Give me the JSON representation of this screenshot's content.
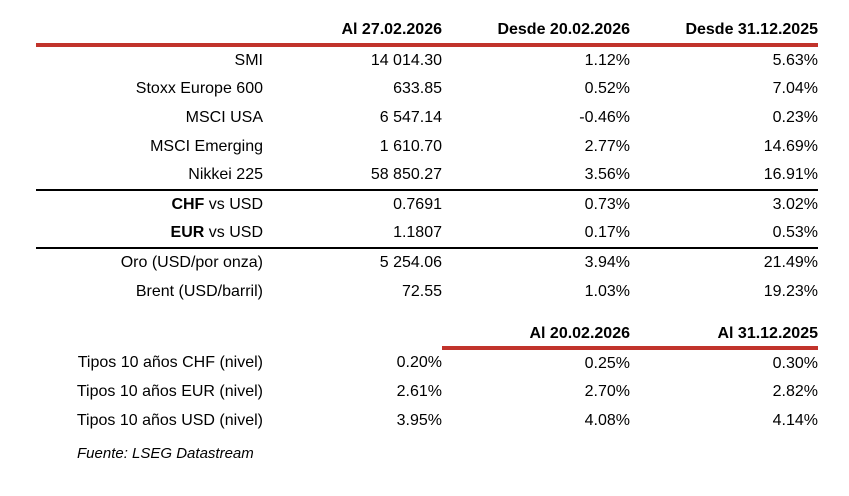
{
  "colors": {
    "accent_red": "#C1332B",
    "divider_black": "#000000",
    "text": "#000000",
    "background": "#FFFFFF"
  },
  "table": {
    "header": {
      "col2": "Al 27.02.2026",
      "col3": "Desde 20.02.2026",
      "col4": "Desde 31.12.2025"
    },
    "rows": [
      {
        "label_bold": "",
        "label": "SMI",
        "values": [
          "14 014.30",
          "1.12%",
          "5.63%"
        ]
      },
      {
        "label_bold": "",
        "label": "Stoxx Europe 600",
        "values": [
          "633.85",
          "0.52%",
          "7.04%"
        ]
      },
      {
        "label_bold": "",
        "label": "MSCI USA",
        "values": [
          "6 547.14",
          "-0.46%",
          "0.23%"
        ]
      },
      {
        "label_bold": "",
        "label": "MSCI Emerging",
        "values": [
          "1 610.70",
          "2.77%",
          "14.69%"
        ]
      },
      {
        "label_bold": "",
        "label": "Nikkei 225",
        "values": [
          "58 850.27",
          "3.56%",
          "16.91%"
        ]
      },
      {
        "label_bold": "CHF",
        "label": " vs USD",
        "values": [
          "0.7691",
          "0.73%",
          "3.02%"
        ]
      },
      {
        "label_bold": "EUR",
        "label": " vs USD",
        "values": [
          "1.1807",
          "0.17%",
          "0.53%"
        ]
      },
      {
        "label_bold": "",
        "label": "Oro (USD/por onza)",
        "values": [
          "5 254.06",
          "3.94%",
          "21.49%"
        ]
      },
      {
        "label_bold": "",
        "label": "Brent (USD/barril)",
        "values": [
          "72.55",
          "1.03%",
          "19.23%"
        ]
      }
    ],
    "rates_header": {
      "col3": "Al 20.02.2026",
      "col4": "Al 31.12.2025"
    },
    "rates_rows": [
      {
        "label": "Tipos 10 años CHF (nivel)",
        "values": [
          "0.20%",
          "0.25%",
          "0.30%"
        ]
      },
      {
        "label": "Tipos 10 años EUR (nivel)",
        "values": [
          "2.61%",
          "2.70%",
          "2.82%"
        ]
      },
      {
        "label": "Tipos 10 años USD (nivel)",
        "values": [
          "3.95%",
          "4.08%",
          "4.14%"
        ]
      }
    ],
    "source": "Fuente: LSEG Datastream"
  }
}
